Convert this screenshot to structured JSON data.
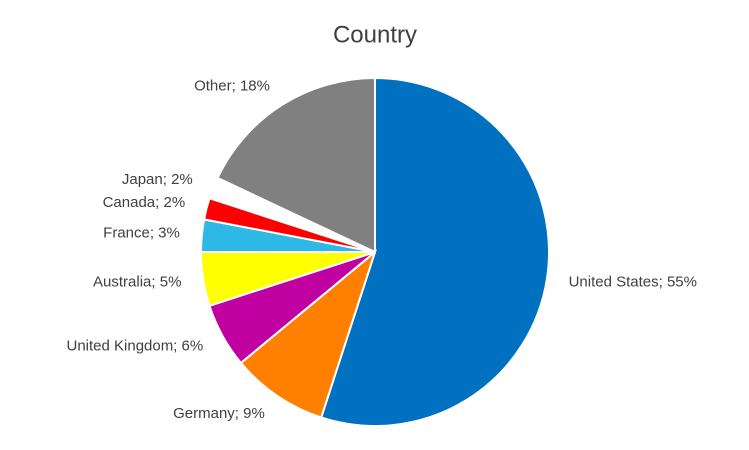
{
  "chart_data": {
    "type": "pie",
    "title": "Country",
    "values": [
      55,
      9,
      6,
      5,
      3,
      2,
      2,
      18
    ],
    "value_labels": [
      "United States; 55%",
      "Germany; 9%",
      "United Kingdom; 6%",
      "Australia; 5%",
      "France; 3%",
      "Canada; 2%",
      "Japan; 2%",
      "Other; 18%"
    ],
    "colors": [
      "#0070c0",
      "#ff8000",
      "#c000a0",
      "#ffff00",
      "#2eb8e6",
      "#ff0000",
      "#ffffff",
      "#808080"
    ]
  }
}
